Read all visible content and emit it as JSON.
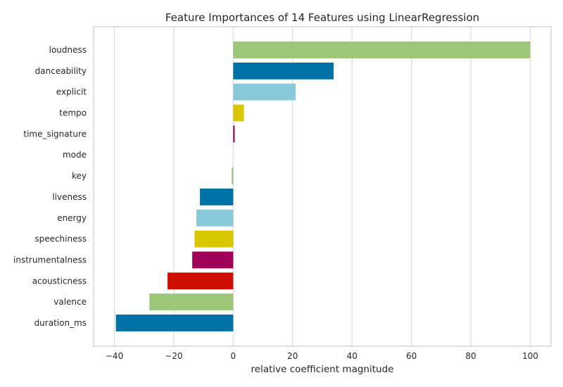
{
  "chart_data": {
    "type": "bar",
    "orientation": "horizontal",
    "title": "Feature Importances of 14 Features using LinearRegression",
    "xlabel": "relative coefficient magnitude",
    "ylabel": "",
    "xlim": [
      -47,
      107
    ],
    "xticks": [
      -40,
      -20,
      0,
      20,
      40,
      60,
      80,
      100
    ],
    "xtick_labels": [
      "−40",
      "−20",
      "0",
      "20",
      "40",
      "60",
      "80",
      "100"
    ],
    "grid": true,
    "categories": [
      "loudness",
      "danceability",
      "explicit",
      "tempo",
      "time_signature",
      "mode",
      "key",
      "liveness",
      "energy",
      "speechiness",
      "instrumentalness",
      "acousticness",
      "valence",
      "duration_ms"
    ],
    "values": [
      100,
      33.8,
      21.0,
      3.6,
      0.5,
      0.0,
      -0.5,
      -11.2,
      -12.4,
      -13.0,
      -13.8,
      -22.1,
      -28.2,
      -39.5
    ],
    "colors": [
      "#9dc67a",
      "#0073a6",
      "#89cada",
      "#d9c700",
      "#9e0058",
      "#0073a6",
      "#9dc67a",
      "#0073a6",
      "#89cada",
      "#d9c700",
      "#a10058",
      "#cc0d00",
      "#9dc67a",
      "#0073a6"
    ]
  }
}
